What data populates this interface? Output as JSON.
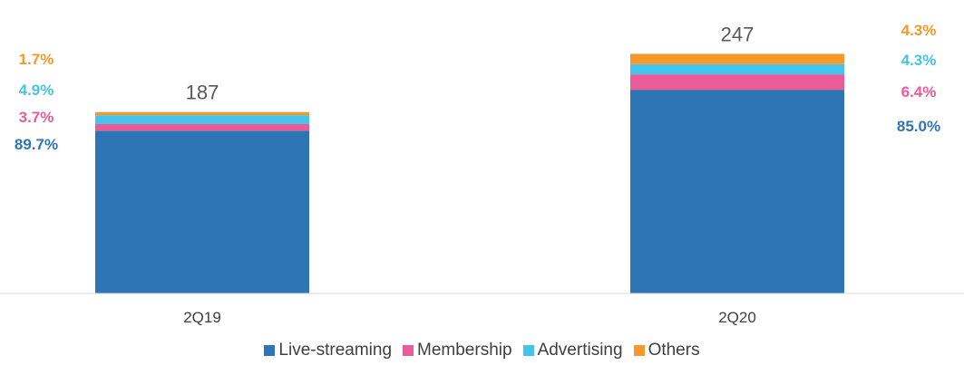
{
  "chart_data": {
    "type": "bar",
    "stacked": true,
    "categories": [
      "2Q19",
      "2Q20"
    ],
    "totals": [
      187,
      247
    ],
    "series": [
      {
        "name": "Live-streaming",
        "color": "#2E75B6",
        "values": [
          167.7,
          210.0
        ],
        "share_labels": [
          "89.7%",
          "85.0%"
        ]
      },
      {
        "name": "Membership",
        "color": "#EC5B98",
        "values": [
          6.9,
          15.8
        ],
        "share_labels": [
          "3.7%",
          "6.4%"
        ]
      },
      {
        "name": "Advertising",
        "color": "#44C4EC",
        "values": [
          9.2,
          10.6
        ],
        "share_labels": [
          "4.9%",
          "4.3%"
        ]
      },
      {
        "name": "Others",
        "color": "#F7982A",
        "values": [
          3.2,
          10.6
        ],
        "share_labels": [
          "1.7%",
          "4.3%"
        ]
      }
    ],
    "legend_position": "bottom",
    "grid": false
  }
}
